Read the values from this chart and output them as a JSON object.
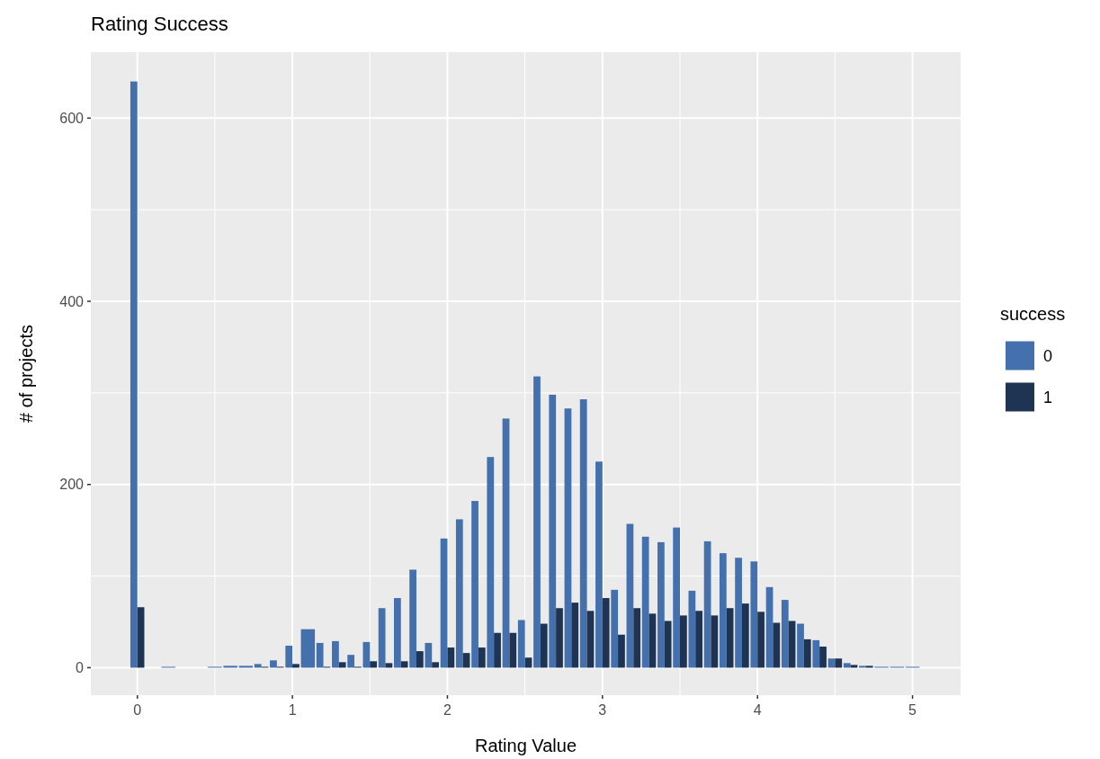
{
  "chart_data": {
    "type": "bar",
    "title": "Rating Success",
    "xlabel": "Rating Value",
    "ylabel": "# of projects",
    "legend_title": "success",
    "legend": "right",
    "grid": true,
    "x": [
      0,
      0.2,
      0.5,
      0.6,
      0.7,
      0.8,
      0.9,
      1.0,
      1.1,
      1.2,
      1.3,
      1.4,
      1.5,
      1.6,
      1.7,
      1.8,
      1.9,
      2.0,
      2.1,
      2.2,
      2.3,
      2.4,
      2.5,
      2.6,
      2.7,
      2.8,
      2.9,
      3.0,
      3.1,
      3.2,
      3.3,
      3.4,
      3.5,
      3.6,
      3.7,
      3.8,
      3.9,
      4.0,
      4.1,
      4.2,
      4.3,
      4.4,
      4.5,
      4.6,
      4.7,
      4.8,
      4.9,
      5.0
    ],
    "series": [
      {
        "name": "0",
        "color": "#4471ae",
        "values": [
          640,
          1,
          1,
          2,
          2,
          4,
          8,
          24,
          42,
          27,
          29,
          14,
          28,
          65,
          76,
          107,
          27,
          141,
          162,
          182,
          230,
          272,
          52,
          318,
          298,
          283,
          293,
          225,
          85,
          157,
          143,
          137,
          153,
          84,
          138,
          125,
          120,
          116,
          88,
          74,
          48,
          30,
          10,
          5,
          2,
          1,
          1,
          1
        ]
      },
      {
        "name": "1",
        "color": "#1f3352",
        "values": [
          66,
          null,
          null,
          null,
          null,
          1,
          1,
          4,
          null,
          1,
          6,
          1,
          7,
          5,
          7,
          18,
          6,
          22,
          16,
          22,
          38,
          38,
          11,
          48,
          65,
          71,
          62,
          76,
          36,
          65,
          59,
          51,
          57,
          62,
          57,
          65,
          70,
          61,
          49,
          51,
          31,
          23,
          10,
          3,
          2,
          null,
          null,
          null
        ]
      }
    ],
    "xlim": [
      -0.3,
      5.31
    ],
    "ylim": [
      -30,
      672
    ],
    "xticks": [
      0,
      1,
      2,
      3,
      4,
      5
    ],
    "yticks": [
      0,
      200,
      400,
      600
    ]
  }
}
